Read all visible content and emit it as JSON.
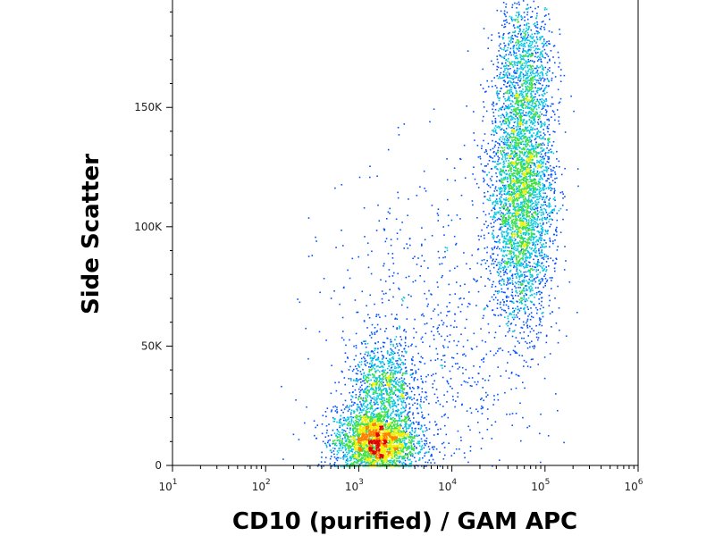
{
  "chart_data": {
    "type": "scatter",
    "title": "",
    "xlabel": "CD10 (purified) / GAM APC",
    "ylabel": "Side Scatter",
    "x_scale": "log",
    "xlim": [
      10,
      1000000
    ],
    "ylim": [
      0,
      195000
    ],
    "grid": false,
    "x_ticks": [
      {
        "base": "10",
        "exp": "1"
      },
      {
        "base": "10",
        "exp": "2"
      },
      {
        "base": "10",
        "exp": "3"
      },
      {
        "base": "10",
        "exp": "4"
      },
      {
        "base": "10",
        "exp": "5"
      },
      {
        "base": "10",
        "exp": "6"
      }
    ],
    "y_ticks": [
      {
        "value": 0,
        "label": "0"
      },
      {
        "value": 50000,
        "label": "50K"
      },
      {
        "value": 100000,
        "label": "100K"
      },
      {
        "value": 150000,
        "label": "150K"
      }
    ],
    "color_scale": [
      "#0000a0",
      "#0050ff",
      "#00c8e0",
      "#40e040",
      "#f0f000",
      "#ff8000",
      "#e00000"
    ],
    "populations": [
      {
        "x_center": 1500,
        "y_center": 10000,
        "x_spread_decades": 0.22,
        "y_spread": 7000,
        "weight": 0.3
      },
      {
        "x_center": 1800,
        "y_center": 33000,
        "x_spread_decades": 0.18,
        "y_spread": 9000,
        "weight": 0.1
      },
      {
        "x_center": 55000,
        "y_center": 115000,
        "x_spread_decades": 0.17,
        "y_spread": 28000,
        "weight": 0.42
      },
      {
        "x_center": 60000,
        "y_center": 170000,
        "x_spread_decades": 0.15,
        "y_spread": 15000,
        "weight": 0.08
      },
      {
        "x_center": 5000,
        "y_center": 40000,
        "x_spread_decades": 0.55,
        "y_spread": 40000,
        "weight": 0.1
      }
    ]
  }
}
